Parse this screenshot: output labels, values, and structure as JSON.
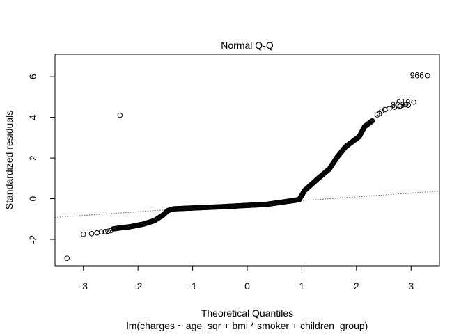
{
  "chart_data": {
    "type": "scatter",
    "title": "Normal Q-Q",
    "xlabel": "Theoretical Quantiles",
    "ylabel": "Standardized residuals",
    "subtitle": "lm(charges ~ age_sqr + bmi * smoker + children_group)",
    "xlim": [
      -3.52,
      3.52
    ],
    "ylim": [
      -3.3,
      7.1
    ],
    "x_ticks": [
      -3,
      -2,
      -1,
      0,
      1,
      2,
      3
    ],
    "y_ticks": [
      -2,
      0,
      2,
      4,
      6
    ],
    "grid": false,
    "reference_line": {
      "style": "dotted",
      "color": "#555555",
      "x": [
        -3.52,
        3.52
      ],
      "y": [
        -0.92,
        0.37
      ]
    },
    "point_labels": [
      {
        "label": "966",
        "x": 3.3,
        "y": 6.05
      },
      {
        "label": "919",
        "x": 3.05,
        "y": 4.75
      },
      {
        "label": "829",
        "x": 2.95,
        "y": 4.6
      }
    ],
    "segments": [
      {
        "from": [
          -2.45,
          -1.48
        ],
        "to": [
          -2.15,
          -1.38
        ]
      },
      {
        "from": [
          -2.15,
          -1.38
        ],
        "to": [
          -1.9,
          -1.25
        ]
      },
      {
        "from": [
          -1.9,
          -1.25
        ],
        "to": [
          -1.7,
          -1.08
        ]
      },
      {
        "from": [
          -1.7,
          -1.08
        ],
        "to": [
          -1.55,
          -0.82
        ]
      },
      {
        "from": [
          -1.55,
          -0.82
        ],
        "to": [
          -1.45,
          -0.58
        ]
      },
      {
        "from": [
          -1.45,
          -0.58
        ],
        "to": [
          -1.35,
          -0.5
        ]
      },
      {
        "from": [
          -1.35,
          -0.5
        ],
        "to": [
          -0.5,
          -0.4
        ]
      },
      {
        "from": [
          -0.5,
          -0.4
        ],
        "to": [
          0.35,
          -0.28
        ]
      },
      {
        "from": [
          0.35,
          -0.28
        ],
        "to": [
          0.95,
          -0.05
        ]
      },
      {
        "from": [
          0.95,
          -0.05
        ],
        "to": [
          1.05,
          0.4
        ]
      },
      {
        "from": [
          1.05,
          0.4
        ],
        "to": [
          1.3,
          1.0
        ]
      },
      {
        "from": [
          1.3,
          1.0
        ],
        "to": [
          1.5,
          1.45
        ]
      },
      {
        "from": [
          1.5,
          1.45
        ],
        "to": [
          1.65,
          2.05
        ]
      },
      {
        "from": [
          1.65,
          2.05
        ],
        "to": [
          1.8,
          2.55
        ]
      },
      {
        "from": [
          1.8,
          2.55
        ],
        "to": [
          1.95,
          2.85
        ]
      },
      {
        "from": [
          1.95,
          2.85
        ],
        "to": [
          2.05,
          3.05
        ]
      },
      {
        "from": [
          2.05,
          3.05
        ],
        "to": [
          2.15,
          3.55
        ]
      },
      {
        "from": [
          2.15,
          3.55
        ],
        "to": [
          2.3,
          3.85
        ]
      }
    ],
    "points": [
      [
        -3.3,
        -2.93
      ],
      [
        -3.0,
        -1.75
      ],
      [
        -2.85,
        -1.72
      ],
      [
        -2.75,
        -1.68
      ],
      [
        -2.67,
        -1.63
      ],
      [
        -2.6,
        -1.62
      ],
      [
        -2.55,
        -1.6
      ],
      [
        -2.5,
        -1.57
      ],
      [
        -2.33,
        4.1
      ],
      [
        2.38,
        4.12
      ],
      [
        2.42,
        4.18
      ],
      [
        2.46,
        4.3
      ],
      [
        2.52,
        4.38
      ],
      [
        2.6,
        4.42
      ],
      [
        2.7,
        4.5
      ],
      [
        2.8,
        4.55
      ],
      [
        2.9,
        4.62
      ],
      [
        2.95,
        4.6
      ],
      [
        3.05,
        4.75
      ],
      [
        3.3,
        6.05
      ]
    ]
  }
}
